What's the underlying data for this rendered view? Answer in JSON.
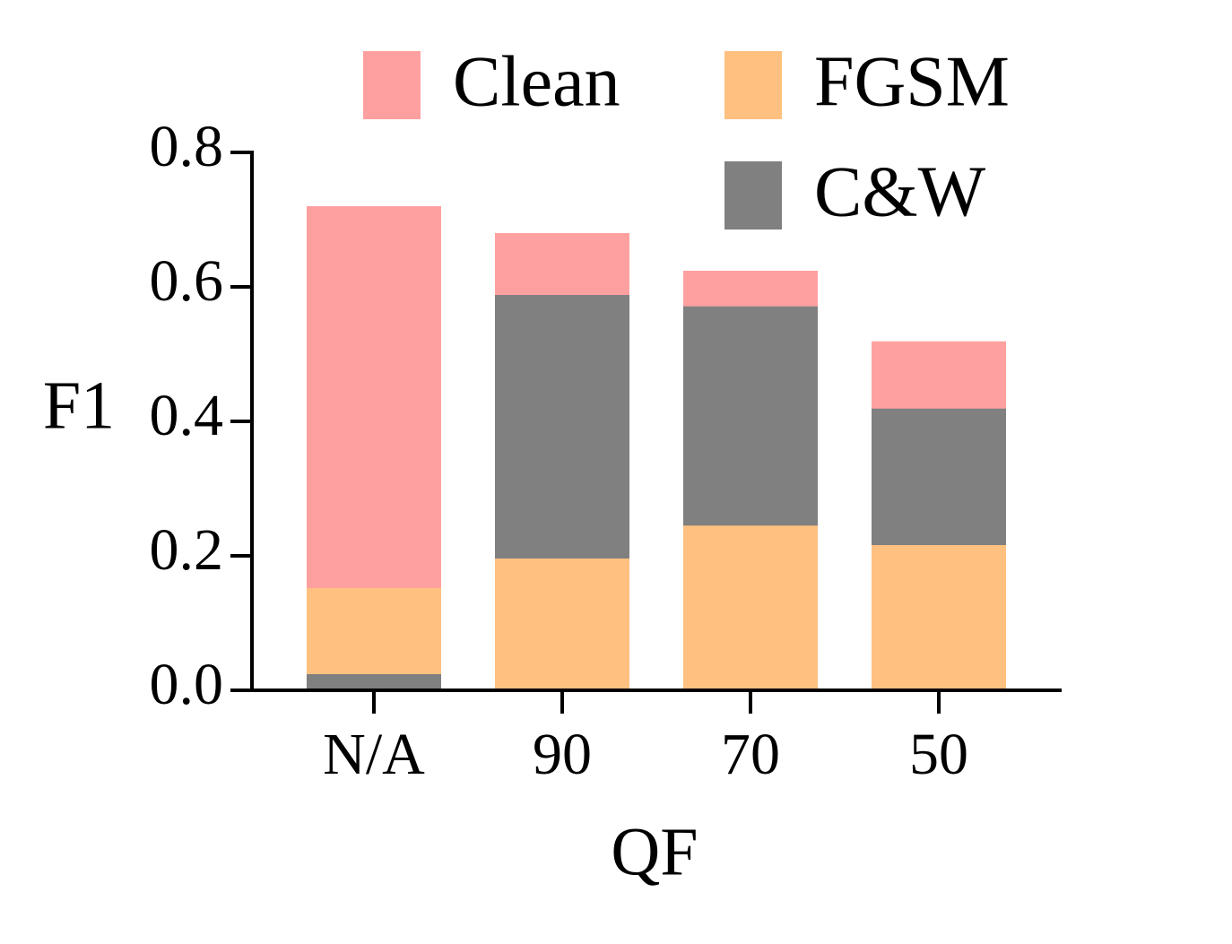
{
  "chart_data": {
    "type": "bar",
    "overlay": true,
    "xlabel": "QF",
    "ylabel": "F1",
    "categories": [
      "N/A",
      "90",
      "70",
      "50"
    ],
    "series": [
      {
        "name": "Clean",
        "color": "#ffa0a0",
        "values": [
          0.72,
          0.68,
          0.624,
          0.519
        ]
      },
      {
        "name": "FGSM",
        "color": "#ffc080",
        "values": [
          0.152,
          0.196,
          0.245,
          0.216
        ]
      },
      {
        "name": "C&W",
        "color": "#808080",
        "values": [
          0.024,
          0.588,
          0.571,
          0.419
        ]
      }
    ],
    "ylim": [
      0,
      0.8
    ],
    "yticks": [
      {
        "value": 0,
        "label": "0.0"
      },
      {
        "value": 0.2,
        "label": "0.2"
      },
      {
        "value": 0.4,
        "label": "0.4"
      },
      {
        "value": 0.6,
        "label": "0.6"
      },
      {
        "value": 0.8,
        "label": "0.8"
      }
    ],
    "grid": false,
    "legend": "top"
  }
}
